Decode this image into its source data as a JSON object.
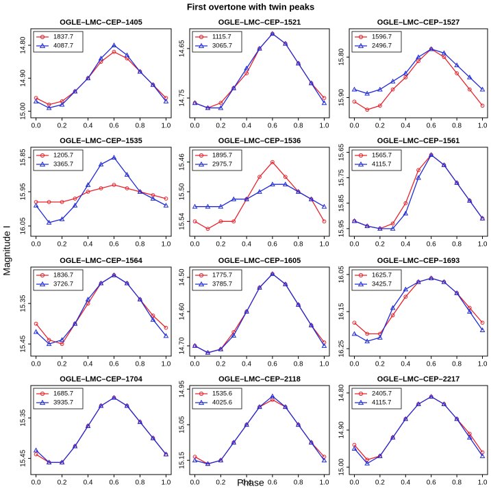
{
  "title": "First overtone with twin peaks",
  "x_label": "Phase",
  "y_label": "Magnitude I",
  "chart_data": [
    {
      "type": "line",
      "title": "OGLE–LMC–CEP–1405",
      "x": [
        0,
        0.1,
        0.2,
        0.3,
        0.4,
        0.5,
        0.6,
        0.7,
        0.8,
        0.9,
        1.0
      ],
      "xlim": [
        -0.04,
        1.04
      ],
      "xticks": [
        {
          "value": 0,
          "label": "0.0"
        },
        {
          "value": 0.2,
          "label": "0.2"
        },
        {
          "value": 0.4,
          "label": "0.4"
        },
        {
          "value": 0.6,
          "label": "0.6"
        },
        {
          "value": 0.8,
          "label": "0.8"
        },
        {
          "value": 1,
          "label": "1.0"
        }
      ],
      "ylim": [
        15.02,
        14.75
      ],
      "yticks": [
        {
          "value": 14.8,
          "label": "14.80"
        },
        {
          "value": 14.9,
          "label": "14.90"
        },
        {
          "value": 15,
          "label": "15.00"
        }
      ],
      "series": [
        {
          "name": "1837.7",
          "color": "#e8202a",
          "values": [
            14.96,
            14.98,
            14.97,
            14.94,
            14.9,
            14.85,
            14.82,
            14.84,
            14.88,
            14.92,
            14.96
          ]
        },
        {
          "name": "4087.7",
          "color": "#1f2ad6",
          "values": [
            14.97,
            14.99,
            14.98,
            14.94,
            14.9,
            14.84,
            14.8,
            14.83,
            14.88,
            14.92,
            14.97
          ]
        }
      ]
    },
    {
      "type": "line",
      "title": "OGLE–LMC–CEP–1521",
      "x": [
        0,
        0.1,
        0.2,
        0.3,
        0.4,
        0.5,
        0.6,
        0.7,
        0.8,
        0.9,
        1.0
      ],
      "xlim": [
        -0.04,
        1.04
      ],
      "xticks": [
        {
          "value": 0,
          "label": "0.0"
        },
        {
          "value": 0.2,
          "label": "0.2"
        },
        {
          "value": 0.4,
          "label": "0.4"
        },
        {
          "value": 0.6,
          "label": "0.6"
        },
        {
          "value": 0.8,
          "label": "0.8"
        },
        {
          "value": 1,
          "label": "1.0"
        }
      ],
      "ylim": [
        14.79,
        14.61
      ],
      "yticks": [
        14.65,
        14.75
      ],
      "series": [
        {
          "name": "1115.7",
          "color": "#e8202a",
          "values": [
            14.76,
            14.77,
            14.76,
            14.73,
            14.7,
            14.65,
            14.62,
            14.64,
            14.68,
            14.72,
            14.75
          ]
        },
        {
          "name": "3065.7",
          "color": "#1f2ad6",
          "values": [
            14.76,
            14.77,
            14.77,
            14.73,
            14.69,
            14.65,
            14.62,
            14.64,
            14.68,
            14.72,
            14.76
          ]
        }
      ]
    },
    {
      "type": "line",
      "title": "OGLE–LMC–CEP–1527",
      "x": [
        0,
        0.1,
        0.2,
        0.3,
        0.4,
        0.5,
        0.6,
        0.7,
        0.8,
        0.9,
        1.0
      ],
      "xlim": [
        -0.04,
        1.04
      ],
      "xticks": [
        {
          "value": 0,
          "label": "0.0"
        },
        {
          "value": 0.2,
          "label": "0.2"
        },
        {
          "value": 0.4,
          "label": "0.4"
        },
        {
          "value": 0.6,
          "label": "0.6"
        },
        {
          "value": 0.8,
          "label": "0.8"
        },
        {
          "value": 1,
          "label": "1.0"
        }
      ],
      "ylim": [
        15.95,
        15.73
      ],
      "yticks": [
        {
          "value": 15.8,
          "label": "15.80"
        },
        {
          "value": 15.9,
          "label": "15.90"
        }
      ],
      "series": [
        {
          "name": "1596.7",
          "color": "#e8202a",
          "values": [
            15.91,
            15.93,
            15.92,
            15.88,
            15.85,
            15.81,
            15.78,
            15.8,
            15.84,
            15.88,
            15.92
          ]
        },
        {
          "name": "2496.7",
          "color": "#1f2ad6",
          "values": [
            15.88,
            15.89,
            15.88,
            15.86,
            15.84,
            15.8,
            15.78,
            15.79,
            15.82,
            15.85,
            15.88
          ]
        }
      ]
    },
    {
      "type": "line",
      "title": "OGLE–LMC–CEP–1535",
      "x": [
        0,
        0.1,
        0.2,
        0.3,
        0.4,
        0.5,
        0.6,
        0.7,
        0.8,
        0.9,
        1.0
      ],
      "xlim": [
        -0.04,
        1.04
      ],
      "xticks": [
        {
          "value": 0,
          "label": "0.0"
        },
        {
          "value": 0.2,
          "label": "0.2"
        },
        {
          "value": 0.4,
          "label": "0.4"
        },
        {
          "value": 0.6,
          "label": "0.6"
        },
        {
          "value": 0.8,
          "label": "0.8"
        },
        {
          "value": 1,
          "label": "1.0"
        }
      ],
      "ylim": [
        16.08,
        15.82
      ],
      "yticks": [
        15.85,
        15.95,
        16.05
      ],
      "series": [
        {
          "name": "1205.7",
          "color": "#e8202a",
          "values": [
            15.98,
            15.98,
            15.98,
            15.97,
            15.95,
            15.94,
            15.93,
            15.94,
            15.95,
            15.96,
            15.97
          ]
        },
        {
          "name": "3365.7",
          "color": "#1f2ad6",
          "values": [
            15.99,
            16.04,
            16.03,
            15.99,
            15.93,
            15.87,
            15.85,
            15.9,
            15.95,
            15.97,
            15.99
          ]
        }
      ]
    },
    {
      "type": "line",
      "title": "OGLE–LMC–CEP–1536",
      "x": [
        0,
        0.1,
        0.2,
        0.3,
        0.4,
        0.5,
        0.6,
        0.7,
        0.8,
        0.9,
        1.0
      ],
      "xlim": [
        -0.04,
        1.04
      ],
      "xticks": [
        {
          "value": 0,
          "label": "0.0"
        },
        {
          "value": 0.2,
          "label": "0.2"
        },
        {
          "value": 0.4,
          "label": "0.4"
        },
        {
          "value": 0.6,
          "label": "0.6"
        },
        {
          "value": 0.8,
          "label": "0.8"
        },
        {
          "value": 1,
          "label": "1.0"
        }
      ],
      "ylim": [
        15.56,
        15.44
      ],
      "yticks": [
        15.46,
        {
          "value": 15.5,
          "label": "15.50"
        },
        15.54
      ],
      "series": [
        {
          "name": "1895.7",
          "color": "#e8202a",
          "values": [
            15.54,
            15.55,
            15.54,
            15.54,
            15.51,
            15.48,
            15.46,
            15.48,
            15.5,
            15.51,
            15.54
          ]
        },
        {
          "name": "2975.7",
          "color": "#1f2ad6",
          "values": [
            15.52,
            15.52,
            15.52,
            15.51,
            15.51,
            15.5,
            15.49,
            15.49,
            15.5,
            15.51,
            15.52
          ]
        }
      ]
    },
    {
      "type": "line",
      "title": "OGLE–LMC–CEP–1561",
      "x": [
        0,
        0.1,
        0.2,
        0.3,
        0.4,
        0.5,
        0.6,
        0.7,
        0.8,
        0.9,
        1.0
      ],
      "xlim": [
        -0.04,
        1.04
      ],
      "xticks": [
        {
          "value": 0,
          "label": "0.0"
        },
        {
          "value": 0.2,
          "label": "0.2"
        },
        {
          "value": 0.4,
          "label": "0.4"
        },
        {
          "value": 0.6,
          "label": "0.6"
        },
        {
          "value": 0.8,
          "label": "0.8"
        },
        {
          "value": 1,
          "label": "1.0"
        }
      ],
      "ylim": [
        15.98,
        15.63
      ],
      "yticks": [
        15.65,
        15.75,
        15.85,
        15.95
      ],
      "series": [
        {
          "name": "1565.7",
          "color": "#e8202a",
          "values": [
            15.92,
            15.94,
            15.95,
            15.93,
            15.85,
            15.72,
            15.66,
            15.7,
            15.77,
            15.84,
            15.91
          ]
        },
        {
          "name": "4115.7",
          "color": "#1f2ad6",
          "values": [
            15.92,
            15.94,
            15.95,
            15.95,
            15.89,
            15.75,
            15.66,
            15.7,
            15.77,
            15.84,
            15.91
          ]
        }
      ]
    },
    {
      "type": "line",
      "title": "OGLE–LMC–CEP–1564",
      "x": [
        0,
        0.1,
        0.2,
        0.3,
        0.4,
        0.5,
        0.6,
        0.7,
        0.8,
        0.9,
        1.0
      ],
      "xlim": [
        -0.04,
        1.04
      ],
      "xticks": [
        {
          "value": 0,
          "label": "0.0"
        },
        {
          "value": 0.2,
          "label": "0.2"
        },
        {
          "value": 0.4,
          "label": "0.4"
        },
        {
          "value": 0.6,
          "label": "0.6"
        },
        {
          "value": 0.8,
          "label": "0.8"
        },
        {
          "value": 1,
          "label": "1.0"
        }
      ],
      "ylim": [
        15.48,
        15.26
      ],
      "yticks": [
        15.35,
        15.45
      ],
      "series": [
        {
          "name": "1836.7",
          "color": "#e8202a",
          "values": [
            15.4,
            15.44,
            15.45,
            15.4,
            15.35,
            15.3,
            15.28,
            15.3,
            15.34,
            15.38,
            15.41
          ]
        },
        {
          "name": "3726.7",
          "color": "#1f2ad6",
          "values": [
            15.42,
            15.45,
            15.44,
            15.4,
            15.34,
            15.3,
            15.28,
            15.3,
            15.34,
            15.39,
            15.43
          ]
        }
      ]
    },
    {
      "type": "line",
      "title": "OGLE–LMC–CEP–1605",
      "x": [
        0,
        0.1,
        0.2,
        0.3,
        0.4,
        0.5,
        0.6,
        0.7,
        0.8,
        0.9,
        1.0
      ],
      "xlim": [
        -0.04,
        1.04
      ],
      "xticks": [
        {
          "value": 0,
          "label": "0.0"
        },
        {
          "value": 0.2,
          "label": "0.2"
        },
        {
          "value": 0.4,
          "label": "0.4"
        },
        {
          "value": 0.6,
          "label": "0.6"
        },
        {
          "value": 0.8,
          "label": "0.8"
        },
        {
          "value": 1,
          "label": "1.0"
        }
      ],
      "ylim": [
        14.73,
        14.47
      ],
      "yticks": [
        {
          "value": 14.5,
          "label": "14.50"
        },
        {
          "value": 14.6,
          "label": "14.60"
        },
        {
          "value": 14.7,
          "label": "14.70"
        }
      ],
      "series": [
        {
          "name": "1775.7",
          "color": "#e8202a",
          "values": [
            14.7,
            14.72,
            14.71,
            14.66,
            14.6,
            14.53,
            14.49,
            14.52,
            14.58,
            14.64,
            14.69
          ]
        },
        {
          "name": "3785.7",
          "color": "#1f2ad6",
          "values": [
            14.7,
            14.72,
            14.71,
            14.67,
            14.6,
            14.53,
            14.49,
            14.52,
            14.58,
            14.64,
            14.7
          ]
        }
      ]
    },
    {
      "type": "line",
      "title": "OGLE–LMC–CEP–1693",
      "x": [
        0,
        0.1,
        0.2,
        0.3,
        0.4,
        0.5,
        0.6,
        0.7,
        0.8,
        0.9,
        1.0
      ],
      "xlim": [
        -0.04,
        1.04
      ],
      "xticks": [
        {
          "value": 0,
          "label": "0.0"
        },
        {
          "value": 0.2,
          "label": "0.2"
        },
        {
          "value": 0.4,
          "label": "0.4"
        },
        {
          "value": 0.6,
          "label": "0.6"
        },
        {
          "value": 0.8,
          "label": "0.8"
        },
        {
          "value": 1,
          "label": "1.0"
        }
      ],
      "ylim": [
        16.27,
        16.03
      ],
      "yticks": [
        16.05,
        16.15,
        16.25
      ],
      "series": [
        {
          "name": "1625.7",
          "color": "#e8202a",
          "values": [
            16.18,
            16.21,
            16.21,
            16.16,
            16.11,
            16.07,
            16.06,
            16.07,
            16.1,
            16.14,
            16.18
          ]
        },
        {
          "name": "3425.7",
          "color": "#1f2ad6",
          "values": [
            16.21,
            16.23,
            16.22,
            16.14,
            16.09,
            16.07,
            16.06,
            16.07,
            16.1,
            16.15,
            16.2
          ]
        }
      ]
    },
    {
      "type": "line",
      "title": "OGLE–LMC–CEP–1704",
      "x": [
        0,
        0.1,
        0.2,
        0.3,
        0.4,
        0.5,
        0.6,
        0.7,
        0.8,
        0.9,
        1.0
      ],
      "xlim": [
        -0.04,
        1.04
      ],
      "xticks": [
        {
          "value": 0,
          "label": "0.0"
        },
        {
          "value": 0.2,
          "label": "0.2"
        },
        {
          "value": 0.4,
          "label": "0.4"
        },
        {
          "value": 0.6,
          "label": "0.6"
        },
        {
          "value": 0.8,
          "label": "0.8"
        },
        {
          "value": 1,
          "label": "1.0"
        }
      ],
      "ylim": [
        15.49,
        15.27
      ],
      "yticks": [
        15.35,
        15.45
      ],
      "series": [
        {
          "name": "1685.7",
          "color": "#e8202a",
          "values": [
            15.44,
            15.46,
            15.46,
            15.42,
            15.37,
            15.32,
            15.3,
            15.32,
            15.36,
            15.4,
            15.44
          ]
        },
        {
          "name": "3935.7",
          "color": "#1f2ad6",
          "values": [
            15.43,
            15.46,
            15.46,
            15.42,
            15.37,
            15.32,
            15.3,
            15.32,
            15.36,
            15.4,
            15.44
          ]
        }
      ]
    },
    {
      "type": "line",
      "title": "OGLE–LMC–CEP–2118",
      "x": [
        0,
        0.1,
        0.2,
        0.3,
        0.4,
        0.5,
        0.6,
        0.7,
        0.8,
        0.9,
        1.0
      ],
      "xlim": [
        -0.04,
        1.04
      ],
      "xticks": [
        {
          "value": 0,
          "label": "0.0"
        },
        {
          "value": 0.2,
          "label": "0.2"
        },
        {
          "value": 0.4,
          "label": "0.4"
        },
        {
          "value": 0.6,
          "label": "0.6"
        },
        {
          "value": 0.8,
          "label": "0.8"
        },
        {
          "value": 1,
          "label": "1.0"
        }
      ],
      "ylim": [
        15.19,
        14.94
      ],
      "yticks": [
        14.95,
        15.05,
        15.15
      ],
      "series": [
        {
          "name": "1535.6",
          "color": "#e8202a",
          "values": [
            15.14,
            15.16,
            15.15,
            15.1,
            15.05,
            15.0,
            14.98,
            15.0,
            15.05,
            15.1,
            15.14
          ]
        },
        {
          "name": "4025.6",
          "color": "#1f2ad6",
          "values": [
            15.15,
            15.16,
            15.15,
            15.1,
            15.05,
            15.0,
            14.97,
            15.0,
            15.05,
            15.1,
            15.15
          ]
        }
      ]
    },
    {
      "type": "line",
      "title": "OGLE–LMC–CEP–2217",
      "x": [
        0,
        0.1,
        0.2,
        0.3,
        0.4,
        0.5,
        0.6,
        0.7,
        0.8,
        0.9,
        1.0
      ],
      "xlim": [
        -0.04,
        1.04
      ],
      "xticks": [
        {
          "value": 0,
          "label": "0.0"
        },
        {
          "value": 0.2,
          "label": "0.2"
        },
        {
          "value": 0.4,
          "label": "0.4"
        },
        {
          "value": 0.6,
          "label": "0.6"
        },
        {
          "value": 0.8,
          "label": "0.8"
        },
        {
          "value": 1,
          "label": "1.0"
        }
      ],
      "ylim": [
        15.02,
        14.78
      ],
      "yticks": [
        {
          "value": 14.8,
          "label": "14.80"
        },
        {
          "value": 14.9,
          "label": "14.90"
        },
        {
          "value": 15,
          "label": "15.00"
        }
      ],
      "series": [
        {
          "name": "2405.7",
          "color": "#e8202a",
          "values": [
            14.94,
            14.98,
            14.97,
            14.92,
            14.87,
            14.83,
            14.81,
            14.83,
            14.87,
            14.91,
            14.96
          ]
        },
        {
          "name": "4115.7",
          "color": "#1f2ad6",
          "values": [
            14.95,
            14.99,
            14.97,
            14.92,
            14.87,
            14.83,
            14.81,
            14.83,
            14.87,
            14.92,
            14.97
          ]
        }
      ]
    }
  ]
}
